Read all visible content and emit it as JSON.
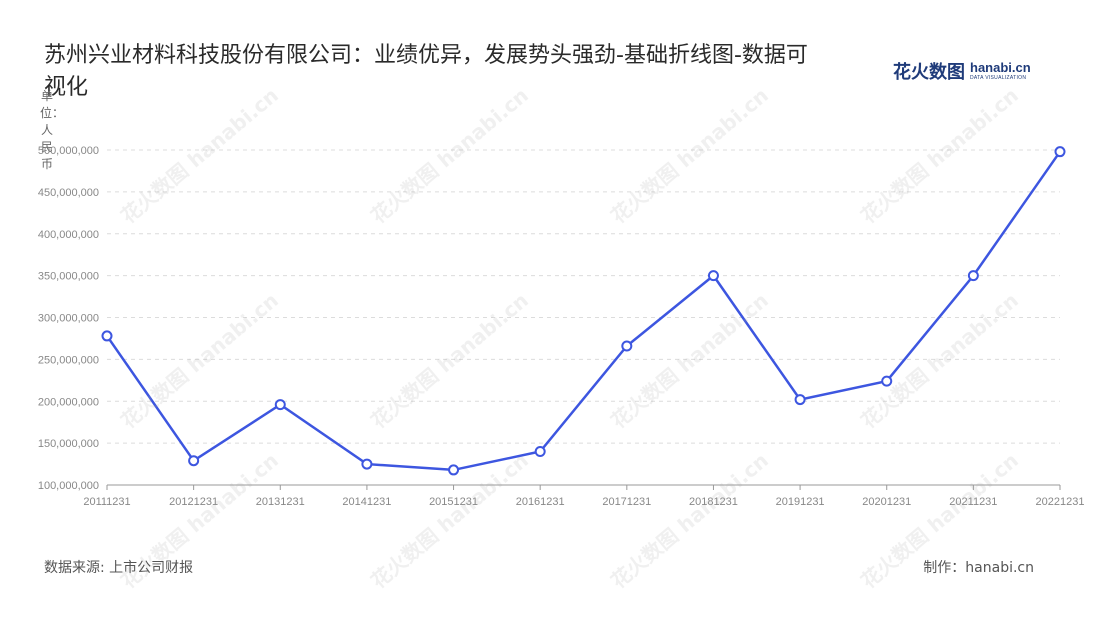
{
  "chart_data": {
    "type": "line",
    "title": "苏州兴业材料科技股份有限公司：业绩优异，发展势头强劲-基础折线图-数据可视化",
    "unit_label": "单位：人民币",
    "categories": [
      "20111231",
      "20121231",
      "20131231",
      "20141231",
      "20151231",
      "20161231",
      "20171231",
      "20181231",
      "20191231",
      "20201231",
      "20211231",
      "20221231"
    ],
    "series": [
      {
        "values": [
          278000000,
          129000000,
          196000000,
          125000000,
          118000000,
          140000000,
          266000000,
          350000000,
          202000000,
          224000000,
          350000000,
          498000000
        ]
      }
    ],
    "y_ticks": [
      "100,000,000",
      "150,000,000",
      "200,000,000",
      "250,000,000",
      "300,000,000",
      "350,000,000",
      "400,000,000",
      "450,000,000",
      "500,000,000"
    ],
    "ylim": [
      100000000,
      500000000
    ],
    "grid": true,
    "line_color": "#3d56e0"
  },
  "logo": {
    "cn": "花火数图",
    "en": "hanabi.cn",
    "en_sub": "DATA VISUALIZATION"
  },
  "watermark_text": "花火数图 hanabi.cn",
  "footer": {
    "source": "数据来源: 上市公司财报",
    "credit": "制作：hanabi.cn"
  }
}
